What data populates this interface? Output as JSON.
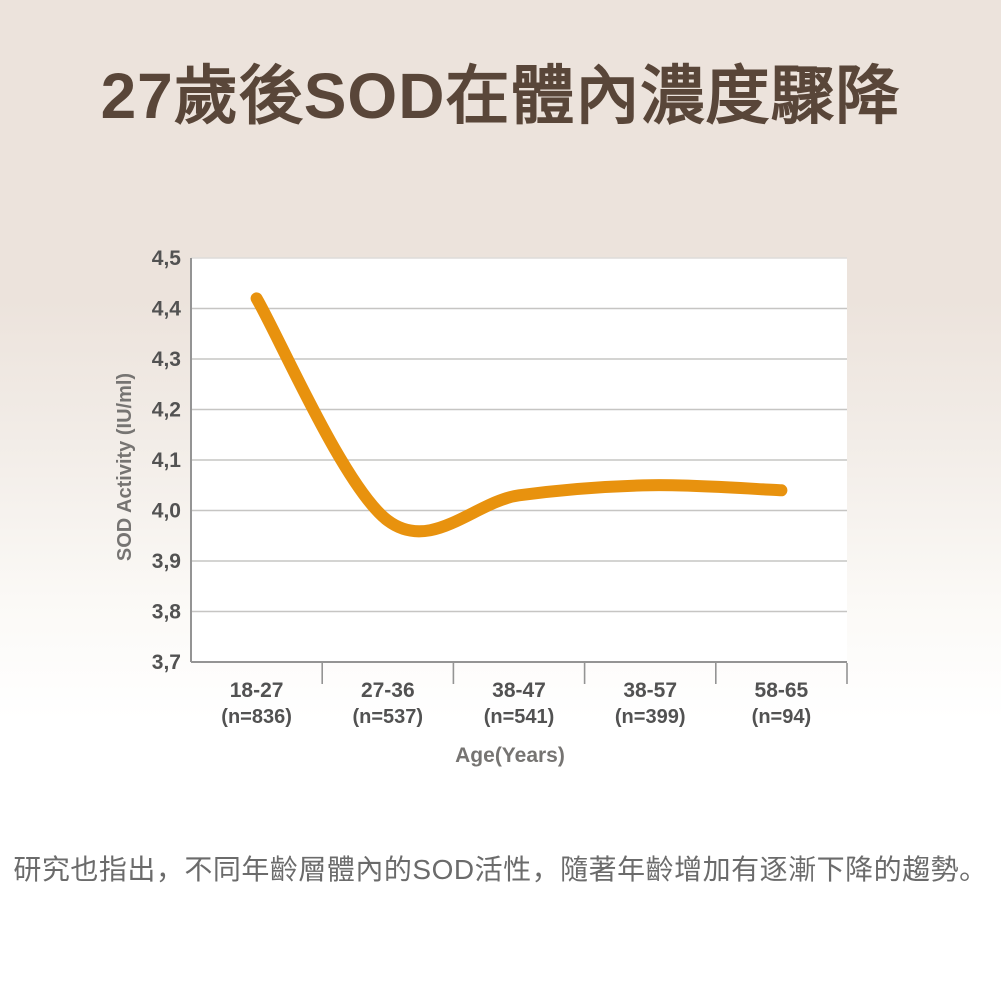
{
  "page": {
    "title": "27歲後SOD在體內濃度驟降",
    "caption": "研究也指出，不同年齡層體內的SOD活性，隨著年齡增加有逐漸下降的趨勢。"
  },
  "colors": {
    "background_top": "#ece3dc",
    "background_bottom": "#ffffff",
    "title_text": "#594639",
    "line": "#e8920e",
    "gridline": "#c6c5c3",
    "gridline_top": "#dddcda",
    "axis": "#949494",
    "tick_label": "#525252",
    "axis_title": "#767472",
    "caption_text": "#6b6b6b",
    "plot_background": "#ffffff"
  },
  "chart_data": {
    "type": "line",
    "title": "",
    "xlabel": "Age(Years)",
    "ylabel": "SOD Activity (IU/ml)",
    "categories": [
      "18-27",
      "27-36",
      "38-47",
      "38-57",
      "58-65"
    ],
    "sample_sizes": [
      "(n=836)",
      "(n=537)",
      "(n=541)",
      "(n=399)",
      "(n=94)"
    ],
    "values": [
      4.42,
      3.98,
      4.03,
      4.05,
      4.04
    ],
    "ylim": [
      3.7,
      4.5
    ],
    "ytick_step": 0.1,
    "ytick_labels": [
      "4,5",
      "4,4",
      "4,3",
      "4,2",
      "4,1",
      "4,0",
      "3,9",
      "3,8",
      "3,7"
    ],
    "grid": "horizontal",
    "legend": "none",
    "line_style": {
      "smooth": true,
      "width": 12,
      "cap": "round"
    }
  }
}
